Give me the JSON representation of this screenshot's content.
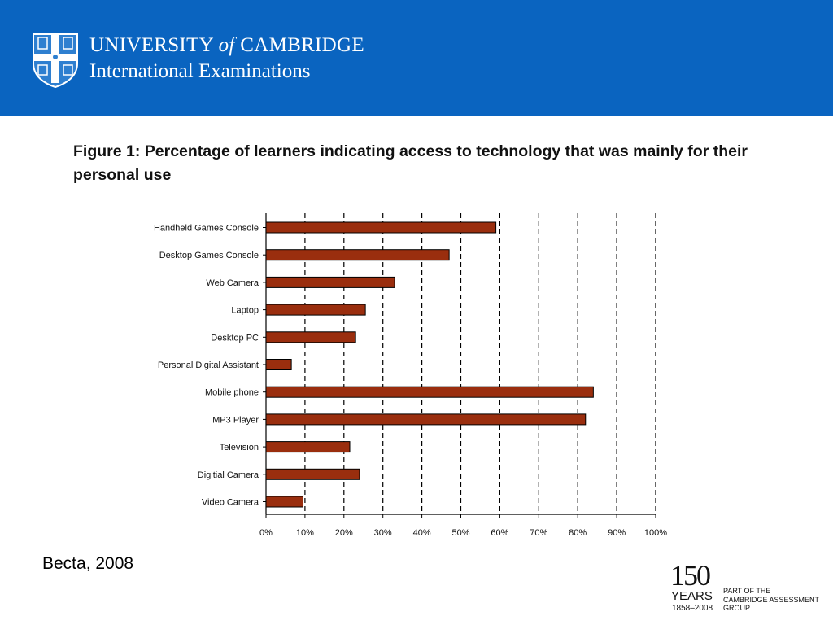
{
  "header": {
    "institution_line1_a": "UNIVERSITY",
    "institution_line1_of": "of",
    "institution_line1_b": "CAMBRIDGE",
    "institution_line2": "International Examinations",
    "banner_color": "#0a64c0"
  },
  "figure": {
    "title": "Figure 1: Percentage of learners indicating access to technology that was mainly for their personal use"
  },
  "chart_data": {
    "type": "bar",
    "orientation": "horizontal",
    "categories": [
      "Handheld Games Console",
      "Desktop Games Console",
      "Web Camera",
      "Laptop",
      "Desktop PC",
      "Personal Digital Assistant",
      "Mobile phone",
      "MP3 Player",
      "Television",
      "Digitial Camera",
      "Video Camera"
    ],
    "values": [
      59,
      47,
      33,
      25.5,
      23,
      6.5,
      84,
      82,
      21.5,
      24,
      9.5
    ],
    "xlim": [
      0,
      100
    ],
    "xticks": [
      "0%",
      "10%",
      "20%",
      "30%",
      "40%",
      "50%",
      "60%",
      "70%",
      "80%",
      "90%",
      "100%"
    ],
    "grid": "vertical dashed",
    "bar_color": "#9a2e0e",
    "bar_border_color": "#000000"
  },
  "footer": {
    "source": "Becta, 2008",
    "anniversary_number": "150",
    "anniversary_word": "YEARS",
    "anniversary_range": "1858–2008",
    "group_line1": "PART OF THE",
    "group_line2": "CAMBRIDGE ASSESSMENT",
    "group_line3": "GROUP"
  }
}
